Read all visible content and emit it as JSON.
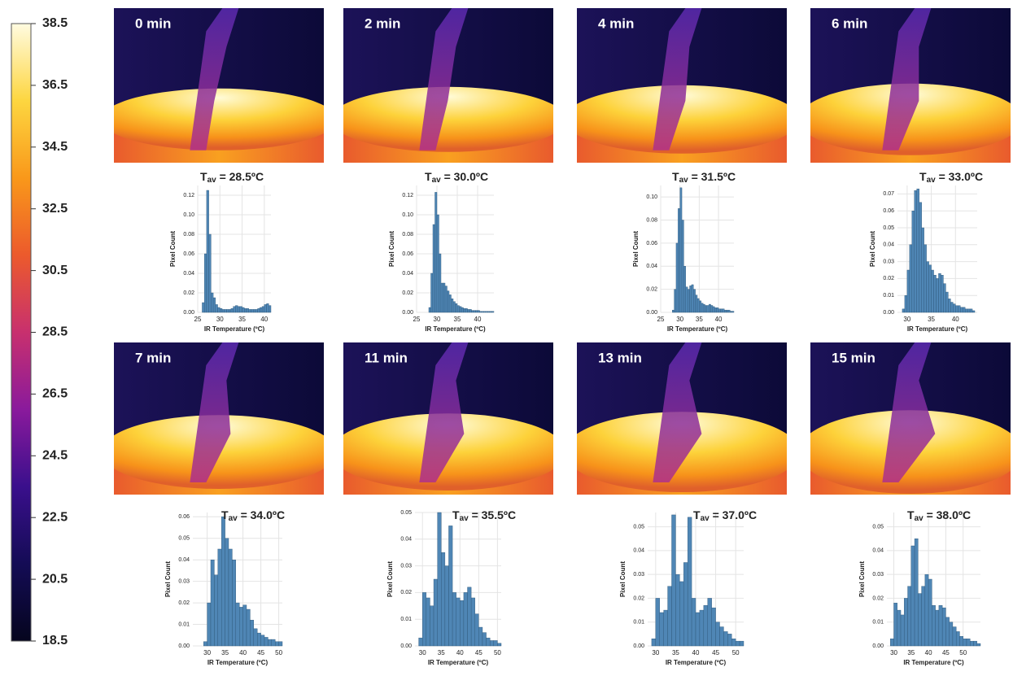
{
  "chart_data": [
    {
      "type": "colorbar",
      "colors": [
        "#05051e",
        "#140c55",
        "#3a0f8c",
        "#8a1a9c",
        "#c8306e",
        "#ec5a2c",
        "#f9981a",
        "#fdd640",
        "#fffbe0"
      ],
      "ylim": [
        18.5,
        38.5
      ],
      "yticks": [
        18.5,
        20.5,
        22.5,
        24.5,
        26.5,
        28.5,
        30.5,
        32.5,
        34.5,
        36.5,
        38.5
      ]
    },
    {
      "type": "histogram",
      "title": "0 min",
      "annotation": {
        "symbol": "T",
        "subscript": "av",
        "text": " = 28.5ºC"
      },
      "xlabel": "IR Temperature (ºC)",
      "ylabel": "Pixel Count",
      "color": "#4f86b5",
      "grid": true,
      "bins": [
        26,
        26.5,
        27,
        27.5,
        28,
        28.5,
        29,
        29.5,
        30,
        30.5,
        31,
        31.5,
        32,
        32.5,
        33,
        33.5,
        34,
        34.5,
        35,
        35.5,
        36,
        36.5,
        37,
        37.5,
        38,
        38.5,
        39,
        39.5,
        40,
        40.5,
        41,
        41.5
      ],
      "values": [
        0.01,
        0.06,
        0.125,
        0.08,
        0.02,
        0.015,
        0.008,
        0.005,
        0.004,
        0.003,
        0.003,
        0.003,
        0.003,
        0.004,
        0.006,
        0.007,
        0.006,
        0.006,
        0.005,
        0.004,
        0.004,
        0.003,
        0.003,
        0.003,
        0.003,
        0.004,
        0.005,
        0.006,
        0.008,
        0.009,
        0.007
      ],
      "xlim": [
        25,
        41.5
      ],
      "xticks": [
        25,
        30,
        35,
        40
      ],
      "ylim": [
        0,
        0.13
      ],
      "yticks": [
        {
          "value": 0,
          "label": "0.00"
        },
        0.02,
        0.04,
        0.06,
        0.08,
        {
          "value": 0.1,
          "label": "0.10"
        },
        0.12
      ]
    },
    {
      "type": "histogram",
      "title": "2 min",
      "annotation": {
        "symbol": "T",
        "subscript": "av",
        "text": " = 30.0ºC"
      },
      "xlabel": "IR Temperature (ºC)",
      "ylabel": "Pixel Count",
      "color": "#4f86b5",
      "grid": true,
      "bins": [
        28,
        28.5,
        29,
        29.5,
        30,
        30.5,
        31,
        31.5,
        32,
        32.5,
        33,
        33.5,
        34,
        34.5,
        35,
        35.5,
        36,
        36.5,
        37,
        37.5,
        38,
        38.5,
        39,
        39.5,
        40,
        40.5,
        41,
        41.5,
        42,
        42.5,
        43,
        43.5,
        44
      ],
      "values": [
        0.005,
        0.04,
        0.09,
        0.123,
        0.1,
        0.06,
        0.03,
        0.03,
        0.027,
        0.022,
        0.018,
        0.014,
        0.011,
        0.009,
        0.007,
        0.006,
        0.005,
        0.004,
        0.004,
        0.003,
        0.003,
        0.002,
        0.002,
        0.002,
        0.002,
        0.001,
        0.001,
        0.001,
        0.001,
        0.001,
        0.001,
        0.001
      ],
      "xlim": [
        25,
        44
      ],
      "xticks": [
        25,
        30,
        35,
        40
      ],
      "ylim": [
        0,
        0.13
      ],
      "yticks": [
        {
          "value": 0,
          "label": "0.00"
        },
        0.02,
        0.04,
        0.06,
        0.08,
        {
          "value": 0.1,
          "label": "0.10"
        },
        0.12
      ]
    },
    {
      "type": "histogram",
      "title": "4 min",
      "annotation": {
        "symbol": "T",
        "subscript": "av",
        "text": " = 31.5ºC"
      },
      "xlabel": "IR Temperature (ºC)",
      "ylabel": "Pixel Count",
      "color": "#4f86b5",
      "grid": true,
      "bins": [
        28,
        28.5,
        29,
        29.5,
        30,
        30.5,
        31,
        31.5,
        32,
        32.5,
        33,
        33.5,
        34,
        34.5,
        35,
        35.5,
        36,
        36.5,
        37,
        37.5,
        38,
        38.5,
        39,
        39.5,
        40,
        40.5,
        41,
        41.5,
        42,
        42.5,
        43,
        43.5,
        44
      ],
      "values": [
        0.002,
        0.02,
        0.06,
        0.09,
        0.108,
        0.08,
        0.04,
        0.022,
        0.02,
        0.023,
        0.024,
        0.02,
        0.015,
        0.012,
        0.01,
        0.008,
        0.007,
        0.006,
        0.006,
        0.007,
        0.006,
        0.005,
        0.004,
        0.004,
        0.003,
        0.003,
        0.003,
        0.002,
        0.002,
        0.002,
        0.001,
        0.001
      ],
      "xlim": [
        25,
        44
      ],
      "xticks": [
        25,
        30,
        35,
        40
      ],
      "ylim": [
        0,
        0.11
      ],
      "yticks": [
        {
          "value": 0,
          "label": "0.00"
        },
        0.02,
        0.04,
        0.06,
        0.08,
        {
          "value": 0.1,
          "label": "0.10"
        }
      ]
    },
    {
      "type": "histogram",
      "title": "6 min",
      "annotation": {
        "symbol": "T",
        "subscript": "av",
        "text": " = 33.0ºC"
      },
      "xlabel": "IR Temperature (ºC)",
      "ylabel": "Pixel Count",
      "color": "#4f86b5",
      "grid": true,
      "bins": [
        29,
        29.5,
        30,
        30.5,
        31,
        31.5,
        32,
        32.5,
        33,
        33.5,
        34,
        34.5,
        35,
        35.5,
        36,
        36.5,
        37,
        37.5,
        38,
        38.5,
        39,
        39.5,
        40,
        40.5,
        41,
        41.5,
        42,
        42.5,
        43,
        43.5,
        44
      ],
      "values": [
        0.002,
        0.01,
        0.025,
        0.04,
        0.06,
        0.072,
        0.073,
        0.065,
        0.05,
        0.04,
        0.03,
        0.028,
        0.025,
        0.022,
        0.02,
        0.023,
        0.022,
        0.017,
        0.012,
        0.008,
        0.006,
        0.005,
        0.004,
        0.004,
        0.003,
        0.003,
        0.002,
        0.002,
        0.002,
        0.001
      ],
      "xlim": [
        28,
        44.5
      ],
      "xticks": [
        30,
        35,
        40
      ],
      "ylim": [
        0,
        0.075
      ],
      "yticks": [
        {
          "value": 0,
          "label": "0.00"
        },
        0.01,
        0.02,
        0.03,
        0.04,
        0.05,
        0.06,
        0.07
      ]
    },
    {
      "type": "histogram",
      "title": "7 min",
      "annotation": {
        "symbol": "T",
        "subscript": "av",
        "text": " = 34.0ºC"
      },
      "xlabel": "IR Temperature (ºC)",
      "ylabel": "Pixel Count",
      "color": "#4f86b5",
      "grid": true,
      "bins": [
        29,
        30,
        31,
        32,
        33,
        34,
        35,
        36,
        37,
        38,
        39,
        40,
        41,
        42,
        43,
        44,
        45,
        46,
        47,
        48,
        49,
        50,
        51
      ],
      "values": [
        0.002,
        0.02,
        0.04,
        0.033,
        0.045,
        0.06,
        0.05,
        0.045,
        0.04,
        0.02,
        0.018,
        0.019,
        0.017,
        0.012,
        0.008,
        0.006,
        0.005,
        0.004,
        0.003,
        0.003,
        0.002,
        0.002
      ],
      "xlim": [
        26,
        51
      ],
      "xticks": [
        30,
        35,
        40,
        45,
        50
      ],
      "ylim": [
        0,
        0.062
      ],
      "yticks": [
        {
          "value": 0,
          "label": "0.00"
        },
        0.01,
        0.02,
        0.03,
        0.04,
        0.05,
        0.06
      ]
    },
    {
      "type": "histogram",
      "title": "11 min",
      "annotation": {
        "symbol": "T",
        "subscript": "av",
        "text": " = 35.5ºC"
      },
      "xlabel": "IR Temperature (ºC)",
      "ylabel": "Pixel Count",
      "color": "#4f86b5",
      "grid": true,
      "bins": [
        29,
        30,
        31,
        32,
        33,
        34,
        35,
        36,
        37,
        38,
        39,
        40,
        41,
        42,
        43,
        44,
        45,
        46,
        47,
        48,
        49,
        50,
        51
      ],
      "values": [
        0.003,
        0.02,
        0.018,
        0.015,
        0.025,
        0.05,
        0.035,
        0.03,
        0.045,
        0.02,
        0.018,
        0.017,
        0.02,
        0.022,
        0.018,
        0.012,
        0.007,
        0.005,
        0.003,
        0.002,
        0.002,
        0.001
      ],
      "xlim": [
        28,
        51
      ],
      "xticks": [
        30,
        35,
        40,
        45,
        50
      ],
      "ylim": [
        0,
        0.05
      ],
      "yticks": [
        {
          "value": 0,
          "label": "0.00"
        },
        0.01,
        0.02,
        0.03,
        0.04,
        0.05
      ]
    },
    {
      "type": "histogram",
      "title": "13 min",
      "annotation": {
        "symbol": "T",
        "subscript": "av",
        "text": " = 37.0ºC"
      },
      "xlabel": "IR Temperature (ºC)",
      "ylabel": "Pixel Count",
      "color": "#4f86b5",
      "grid": true,
      "bins": [
        29,
        30,
        31,
        32,
        33,
        34,
        35,
        36,
        37,
        38,
        39,
        40,
        41,
        42,
        43,
        44,
        45,
        46,
        47,
        48,
        49,
        50,
        51,
        52
      ],
      "values": [
        0.003,
        0.02,
        0.014,
        0.015,
        0.025,
        0.055,
        0.03,
        0.027,
        0.035,
        0.054,
        0.02,
        0.014,
        0.015,
        0.017,
        0.02,
        0.016,
        0.01,
        0.008,
        0.006,
        0.005,
        0.003,
        0.002,
        0.002
      ],
      "xlim": [
        28,
        52
      ],
      "xticks": [
        30,
        35,
        40,
        45,
        50
      ],
      "ylim": [
        0,
        0.056
      ],
      "yticks": [
        {
          "value": 0,
          "label": "0.00"
        },
        0.01,
        0.02,
        0.03,
        0.04,
        0.05
      ]
    },
    {
      "type": "histogram",
      "title": "15 min",
      "annotation": {
        "symbol": "T",
        "subscript": "av",
        "text": " = 38.0ºC"
      },
      "xlabel": "IR Temperature (ºC)",
      "ylabel": "Pixel Count",
      "color": "#4f86b5",
      "grid": true,
      "bins": [
        29,
        30,
        31,
        32,
        33,
        34,
        35,
        36,
        37,
        38,
        39,
        40,
        41,
        42,
        43,
        44,
        45,
        46,
        47,
        48,
        49,
        50,
        51,
        52,
        53,
        54,
        55
      ],
      "values": [
        0.003,
        0.018,
        0.015,
        0.013,
        0.02,
        0.025,
        0.042,
        0.045,
        0.022,
        0.025,
        0.03,
        0.028,
        0.017,
        0.015,
        0.017,
        0.016,
        0.012,
        0.01,
        0.008,
        0.006,
        0.004,
        0.003,
        0.003,
        0.002,
        0.002,
        0.001
      ],
      "xlim": [
        28,
        55
      ],
      "xticks": [
        30,
        35,
        40,
        45,
        50
      ],
      "ylim": [
        0,
        0.056
      ],
      "yticks": [
        {
          "value": 0,
          "label": "0.00"
        },
        0.01,
        0.02,
        0.03,
        0.04,
        0.05
      ]
    }
  ]
}
